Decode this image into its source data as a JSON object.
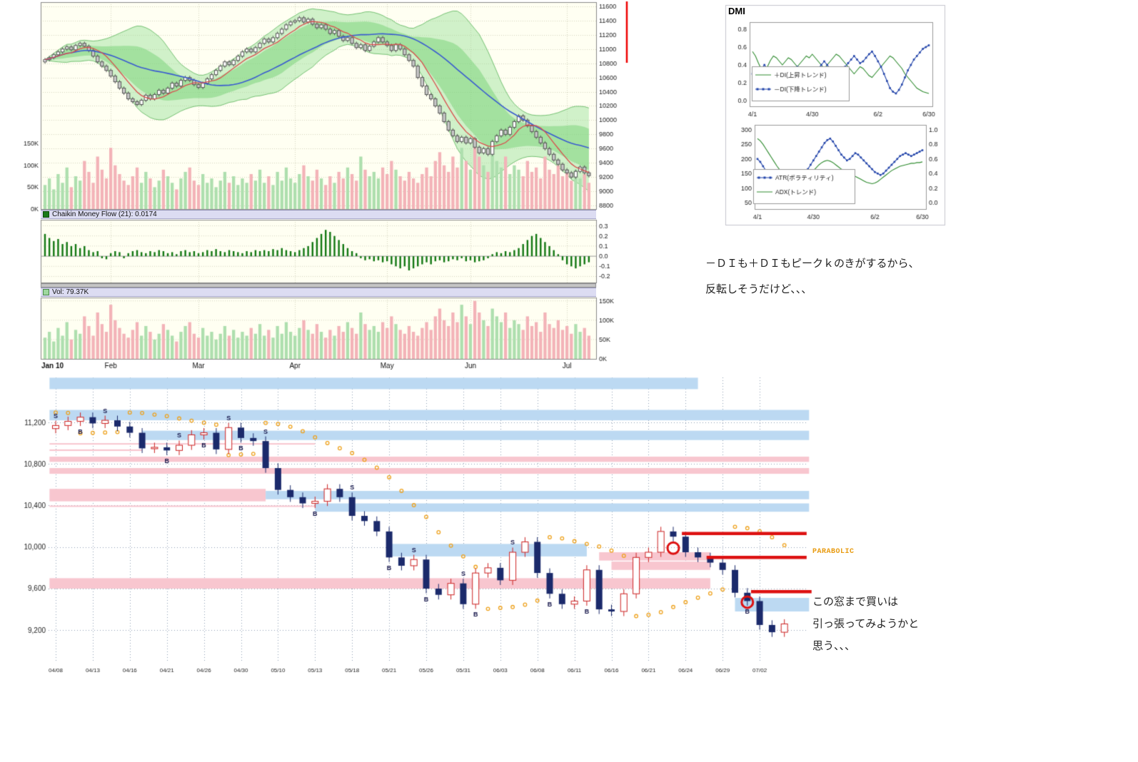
{
  "texts": {
    "dmi_title": "DMI",
    "dmi_note1": "－ＤＩも＋ＤＩもピークｋのきがするから、",
    "dmi_note2": "反転しそうだけど、、、",
    "parabolic": "PARABOLIC",
    "bottom_note1": "この窓まで買いは",
    "bottom_note2": "引っ張ってみようかと",
    "bottom_note3": "思う、、、",
    "cmf_label": "Chaikin Money Flow (21): 0.0174",
    "vol_label": "Vol: 79.37K"
  },
  "colors": {
    "accent_red": "#dd1111",
    "band_blue": "#bcd9f2",
    "band_pink": "#f8c6cf",
    "candle_up_red": "#cc2222",
    "candle_down_navy": "#1b2a6b",
    "sar_orange": "#eea320",
    "plus_di_green": "#2e8b2e",
    "minus_di_blue": "#2244aa",
    "cream_bg": "#fffff2",
    "strip_lavender": "#dcdcf2",
    "cmf_green": "#117711"
  },
  "chart_data": [
    {
      "id": "main_price",
      "type": "candlestick",
      "title": "",
      "x_labels": [
        "Jan 10",
        "Feb",
        "Mar",
        "Apr",
        "May",
        "Jun",
        "Jul"
      ],
      "x_label_idx": [
        0,
        15,
        35,
        57,
        78,
        97,
        119
      ],
      "y_ticks": [
        11600,
        11400,
        11200,
        11000,
        10800,
        10600,
        10400,
        10200,
        10000,
        9800,
        9600,
        9400,
        9200,
        9000,
        8800
      ],
      "ylim": [
        8750,
        11660
      ],
      "overlays": [
        "bollinger-band",
        "ma-fast-red",
        "ma-slow-blue",
        "volume"
      ],
      "vol_ticks": [
        "150K",
        "100K",
        "50K",
        "0K"
      ],
      "vol_tick_values": [
        150,
        100,
        50,
        0
      ],
      "vol_scale_max": 155,
      "close": [
        10850,
        10880,
        10920,
        10960,
        11000,
        11030,
        10990,
        11050,
        11080,
        11040,
        10980,
        10900,
        10820,
        10760,
        10700,
        10620,
        10540,
        10450,
        10380,
        10300,
        10260,
        10220,
        10280,
        10350,
        10300,
        10360,
        10420,
        10380,
        10450,
        10520,
        10480,
        10560,
        10600,
        10560,
        10500,
        10460,
        10520,
        10580,
        10640,
        10700,
        10760,
        10820,
        10780,
        10840,
        10900,
        10960,
        11000,
        10960,
        11020,
        11080,
        11140,
        11100,
        11160,
        11220,
        11280,
        11340,
        11380,
        11400,
        11440,
        11380,
        11420,
        11350,
        11300,
        11340,
        11280,
        11220,
        11260,
        11180,
        11120,
        11160,
        11080,
        11020,
        11060,
        10980,
        11040,
        11100,
        11160,
        11100,
        11050,
        10980,
        11060,
        11000,
        10920,
        10840,
        10760,
        10600,
        10480,
        10360,
        10300,
        10200,
        10100,
        9980,
        9860,
        9780,
        9700,
        9760,
        9680,
        9740,
        9620,
        9540,
        9600,
        9520,
        9700,
        9780,
        9860,
        9800,
        9900,
        9980,
        10060,
        10000,
        9920,
        9840,
        9760,
        9680,
        9600,
        9520,
        9440,
        9380,
        9300,
        9260,
        9200,
        9280,
        9340,
        9260,
        9220
      ],
      "volume": [
        55,
        70,
        45,
        80,
        60,
        95,
        50,
        75,
        65,
        110,
        85,
        60,
        120,
        90,
        70,
        140,
        100,
        80,
        65,
        55,
        75,
        95,
        60,
        85,
        70,
        50,
        65,
        90,
        75,
        60,
        45,
        70,
        85,
        95,
        65,
        55,
        80,
        60,
        70,
        50,
        65,
        85,
        60,
        75,
        55,
        70,
        60,
        80,
        65,
        90,
        60,
        75,
        55,
        85,
        65,
        95,
        70,
        60,
        80,
        100,
        75,
        65,
        90,
        70,
        55,
        75,
        60,
        85,
        70,
        95,
        80,
        65,
        120,
        90,
        75,
        85,
        70,
        95,
        80,
        110,
        90,
        75,
        65,
        85,
        70,
        60,
        80,
        95,
        75,
        110,
        130,
        100,
        85,
        120,
        95,
        140,
        110,
        90,
        150,
        120,
        100,
        85,
        130,
        110,
        95,
        120,
        80,
        100,
        90,
        75,
        110,
        85,
        95,
        70,
        120,
        90,
        80,
        100,
        75,
        85,
        65,
        90,
        70,
        80,
        60
      ]
    },
    {
      "id": "cmf",
      "type": "bar",
      "label": "Chaikin Money Flow (21): 0.0174",
      "y_ticks": [
        0.3,
        0.2,
        0.1,
        0.0,
        -0.1,
        -0.2
      ],
      "ylim": [
        -0.26,
        0.36
      ],
      "values": [
        0.22,
        0.18,
        0.15,
        0.17,
        0.12,
        0.14,
        0.1,
        0.12,
        0.08,
        0.1,
        0.06,
        0.04,
        0.05,
        -0.02,
        -0.03,
        0.03,
        0.05,
        0.04,
        -0.02,
        0.03,
        0.05,
        0.06,
        0.04,
        0.03,
        0.05,
        0.04,
        0.06,
        0.05,
        0.03,
        0.04,
        0.02,
        0.05,
        0.06,
        0.04,
        0.05,
        0.03,
        0.04,
        0.06,
        0.05,
        0.07,
        0.05,
        0.04,
        0.06,
        0.05,
        0.04,
        0.03,
        0.05,
        0.04,
        0.06,
        0.05,
        0.06,
        0.05,
        0.07,
        0.06,
        0.08,
        0.06,
        0.05,
        0.04,
        0.06,
        0.08,
        0.1,
        0.14,
        0.18,
        0.22,
        0.26,
        0.24,
        0.2,
        0.16,
        0.12,
        0.08,
        0.05,
        0.03,
        -0.02,
        -0.04,
        -0.03,
        -0.05,
        -0.04,
        -0.06,
        -0.05,
        -0.08,
        -0.1,
        -0.12,
        -0.1,
        -0.14,
        -0.12,
        -0.1,
        -0.08,
        -0.06,
        -0.08,
        -0.05,
        -0.04,
        -0.06,
        -0.05,
        -0.03,
        -0.04,
        -0.02,
        -0.05,
        -0.04,
        -0.06,
        -0.05,
        -0.04,
        -0.02,
        0.02,
        0.04,
        0.03,
        0.05,
        0.04,
        0.06,
        0.08,
        0.12,
        0.16,
        0.2,
        0.22,
        0.18,
        0.14,
        0.1,
        0.06,
        0.02,
        -0.04,
        -0.08,
        -0.1,
        -0.12,
        -0.1,
        -0.08,
        -0.06
      ]
    },
    {
      "id": "volume_panel",
      "type": "bar",
      "label": "Vol: 79.37K",
      "y_ticks": [
        "150K",
        "100K",
        "50K",
        "0K"
      ],
      "y_tick_values": [
        150,
        100,
        50,
        0
      ]
    },
    {
      "id": "dmi_di",
      "type": "line",
      "title": "DMI",
      "x_ticks": [
        "4/1",
        "4/30",
        "6/2",
        "6/30"
      ],
      "x_tick_idx": [
        0,
        20,
        42,
        59
      ],
      "y_ticks": [
        0.8,
        0.6,
        0.4,
        0.2,
        0.0
      ],
      "ylim": [
        0,
        0.8
      ],
      "legend_position": "bottom-left-inside",
      "series": [
        {
          "name": "＋DI(上昇トレンド)",
          "color": "#2e8b2e",
          "marker": false,
          "values": [
            0.55,
            0.5,
            0.42,
            0.35,
            0.32,
            0.38,
            0.45,
            0.5,
            0.48,
            0.44,
            0.4,
            0.44,
            0.48,
            0.46,
            0.42,
            0.38,
            0.42,
            0.46,
            0.5,
            0.48,
            0.52,
            0.48,
            0.44,
            0.4,
            0.36,
            0.4,
            0.44,
            0.48,
            0.52,
            0.5,
            0.46,
            0.42,
            0.38,
            0.34,
            0.3,
            0.34,
            0.38,
            0.36,
            0.32,
            0.28,
            0.26,
            0.3,
            0.34,
            0.38,
            0.42,
            0.46,
            0.5,
            0.48,
            0.44,
            0.4,
            0.36,
            0.3,
            0.26,
            0.22,
            0.18,
            0.14,
            0.12,
            0.1,
            0.09,
            0.08
          ]
        },
        {
          "name": "－DI(下降トレンド)",
          "color": "#2244aa",
          "marker": true,
          "values": [
            0.3,
            0.28,
            0.32,
            0.36,
            0.4,
            0.36,
            0.3,
            0.26,
            0.28,
            0.32,
            0.36,
            0.32,
            0.28,
            0.3,
            0.34,
            0.38,
            0.34,
            0.3,
            0.28,
            0.32,
            0.28,
            0.32,
            0.36,
            0.4,
            0.44,
            0.4,
            0.36,
            0.32,
            0.28,
            0.3,
            0.34,
            0.38,
            0.42,
            0.46,
            0.5,
            0.46,
            0.42,
            0.44,
            0.48,
            0.52,
            0.55,
            0.5,
            0.44,
            0.38,
            0.3,
            0.22,
            0.14,
            0.1,
            0.08,
            0.12,
            0.18,
            0.26,
            0.34,
            0.4,
            0.46,
            0.5,
            0.54,
            0.58,
            0.6,
            0.62
          ]
        }
      ]
    },
    {
      "id": "dmi_atr_adx",
      "type": "line",
      "x_ticks": [
        "4/1",
        "4/30",
        "6/2",
        "6/30"
      ],
      "x_tick_idx": [
        0,
        20,
        42,
        59
      ],
      "y_ticks_left": [
        300,
        250,
        200,
        150,
        100,
        50
      ],
      "ylim_left": [
        50,
        300
      ],
      "y_ticks_right": [
        1.0,
        0.8,
        0.6,
        0.4,
        0.2,
        0.0
      ],
      "ylim_right": [
        0,
        1
      ],
      "legend_position": "bottom-left-inside",
      "series": [
        {
          "name": "ATR(ボラティリティ)",
          "color": "#2244aa",
          "axis": "left",
          "marker": true,
          "values": [
            200,
            190,
            175,
            160,
            150,
            140,
            130,
            120,
            110,
            100,
            95,
            92,
            95,
            100,
            110,
            120,
            135,
            150,
            165,
            180,
            195,
            210,
            225,
            240,
            255,
            265,
            270,
            260,
            245,
            230,
            215,
            205,
            195,
            200,
            210,
            220,
            215,
            205,
            195,
            185,
            175,
            165,
            155,
            150,
            145,
            150,
            160,
            170,
            180,
            190,
            200,
            210,
            215,
            220,
            215,
            210,
            215,
            220,
            225,
            230
          ]
        },
        {
          "name": "ADX(トレンド)",
          "color": "#2e8b2e",
          "axis": "right",
          "marker": false,
          "values": [
            0.88,
            0.85,
            0.8,
            0.74,
            0.68,
            0.62,
            0.56,
            0.5,
            0.45,
            0.4,
            0.36,
            0.33,
            0.3,
            0.28,
            0.27,
            0.28,
            0.3,
            0.33,
            0.36,
            0.4,
            0.44,
            0.48,
            0.52,
            0.55,
            0.57,
            0.58,
            0.57,
            0.55,
            0.52,
            0.49,
            0.46,
            0.44,
            0.42,
            0.4,
            0.38,
            0.36,
            0.34,
            0.32,
            0.3,
            0.28,
            0.27,
            0.26,
            0.27,
            0.29,
            0.32,
            0.35,
            0.38,
            0.41,
            0.44,
            0.46,
            0.48,
            0.5,
            0.51,
            0.52,
            0.53,
            0.54,
            0.54,
            0.55,
            0.55,
            0.56
          ]
        }
      ]
    },
    {
      "id": "daily_detail",
      "type": "candlestick",
      "overlays": [
        "parabolic-sar",
        "gap-windows",
        "trade-markers"
      ],
      "y_ticks": [
        "11,200",
        "10,800",
        "10,400",
        "10,000",
        "9,600",
        "9,200"
      ],
      "y_tick_values": [
        11200,
        10800,
        10400,
        10000,
        9600,
        9200
      ],
      "x_labels": [
        "04/08",
        "04/13",
        "04/16",
        "04/21",
        "04/26",
        "04/30",
        "05/10",
        "05/13",
        "05/18",
        "05/21",
        "05/26",
        "05/31",
        "06/03",
        "06/08",
        "06/11",
        "06/16",
        "06/21",
        "06/24",
        "06/29",
        "07/02"
      ],
      "close": [
        11170,
        11210,
        11250,
        11190,
        11220,
        11160,
        11100,
        10950,
        10960,
        10930,
        10980,
        11080,
        11100,
        10940,
        11150,
        11050,
        11020,
        10760,
        10550,
        10480,
        10420,
        10440,
        10560,
        10480,
        10300,
        10250,
        10150,
        9900,
        9820,
        9880,
        9600,
        9540,
        9650,
        9450,
        9750,
        9800,
        9680,
        9950,
        10050,
        9750,
        9550,
        9450,
        9480,
        9780,
        9400,
        9380,
        9550,
        9900,
        9950,
        10150,
        10100,
        9950,
        9900,
        9850,
        9780,
        9560,
        9480,
        9250,
        9180,
        9260
      ],
      "windows": [
        {
          "p1": 11630,
          "p2": 11520,
          "i1": -0.5,
          "i2": 52,
          "c": "b"
        },
        {
          "p1": 11320,
          "p2": 11220,
          "i1": -0.5,
          "i2": 61,
          "c": "b"
        },
        {
          "p1": 11120,
          "p2": 11030,
          "i1": 7,
          "i2": 61,
          "c": "b"
        },
        {
          "p1": 11000,
          "p2": 10988,
          "i1": -0.5,
          "i2": 21,
          "c": "p"
        },
        {
          "p1": 10940,
          "p2": 10925,
          "i1": -0.5,
          "i2": 7,
          "c": "p"
        },
        {
          "p1": 10870,
          "p2": 10820,
          "i1": -0.5,
          "i2": 61,
          "c": "p"
        },
        {
          "p1": 10760,
          "p2": 10705,
          "i1": -0.5,
          "i2": 61,
          "c": "p"
        },
        {
          "p1": 10560,
          "p2": 10440,
          "i1": -0.5,
          "i2": 17,
          "c": "p"
        },
        {
          "p1": 10540,
          "p2": 10460,
          "i1": 17,
          "i2": 61,
          "c": "b"
        },
        {
          "p1": 10420,
          "p2": 10340,
          "i1": 21,
          "i2": 61,
          "c": "b"
        },
        {
          "p1": 10400,
          "p2": 10390,
          "i1": -0.5,
          "i2": 21,
          "c": "p"
        },
        {
          "p1": 10030,
          "p2": 9910,
          "i1": 27,
          "i2": 43,
          "c": "b"
        },
        {
          "p1": 9950,
          "p2": 9870,
          "i1": 44,
          "i2": 53,
          "c": "p"
        },
        {
          "p1": 9860,
          "p2": 9780,
          "i1": 45,
          "i2": 53,
          "c": "p"
        },
        {
          "p1": 9700,
          "p2": 9600,
          "i1": -0.5,
          "i2": 53,
          "c": "p"
        },
        {
          "p1": 9510,
          "p2": 9380,
          "i1": 55,
          "i2": 61,
          "c": "b"
        }
      ],
      "markers": [
        {
          "i": 0,
          "t": "S"
        },
        {
          "i": 2,
          "t": "B"
        },
        {
          "i": 4,
          "t": "S"
        },
        {
          "i": 9,
          "t": "B"
        },
        {
          "i": 10,
          "t": "S"
        },
        {
          "i": 12,
          "t": "B"
        },
        {
          "i": 14,
          "t": "S"
        },
        {
          "i": 15,
          "t": "B"
        },
        {
          "i": 17,
          "t": "S"
        },
        {
          "i": 21,
          "t": "B"
        },
        {
          "i": 24,
          "t": "S"
        },
        {
          "i": 27,
          "t": "B"
        },
        {
          "i": 29,
          "t": "S"
        },
        {
          "i": 30,
          "t": "B"
        },
        {
          "i": 33,
          "t": "S"
        },
        {
          "i": 34,
          "t": "B"
        },
        {
          "i": 37,
          "t": "S"
        },
        {
          "i": 40,
          "t": "B"
        },
        {
          "i": 43,
          "t": "B"
        },
        {
          "i": 56,
          "t": "B"
        }
      ],
      "annotations": {
        "circles": [
          {
            "i": 50,
            "p": 9990
          },
          {
            "i": 56,
            "p": 9470
          }
        ],
        "hlines": [
          {
            "p": 10130,
            "i1": 50.7,
            "i2": 60.8
          },
          {
            "p": 9900,
            "i1": 52.7,
            "i2": 60.8
          },
          {
            "p": 9570,
            "i1": 56.3,
            "i2": 61.2
          }
        ]
      }
    }
  ]
}
